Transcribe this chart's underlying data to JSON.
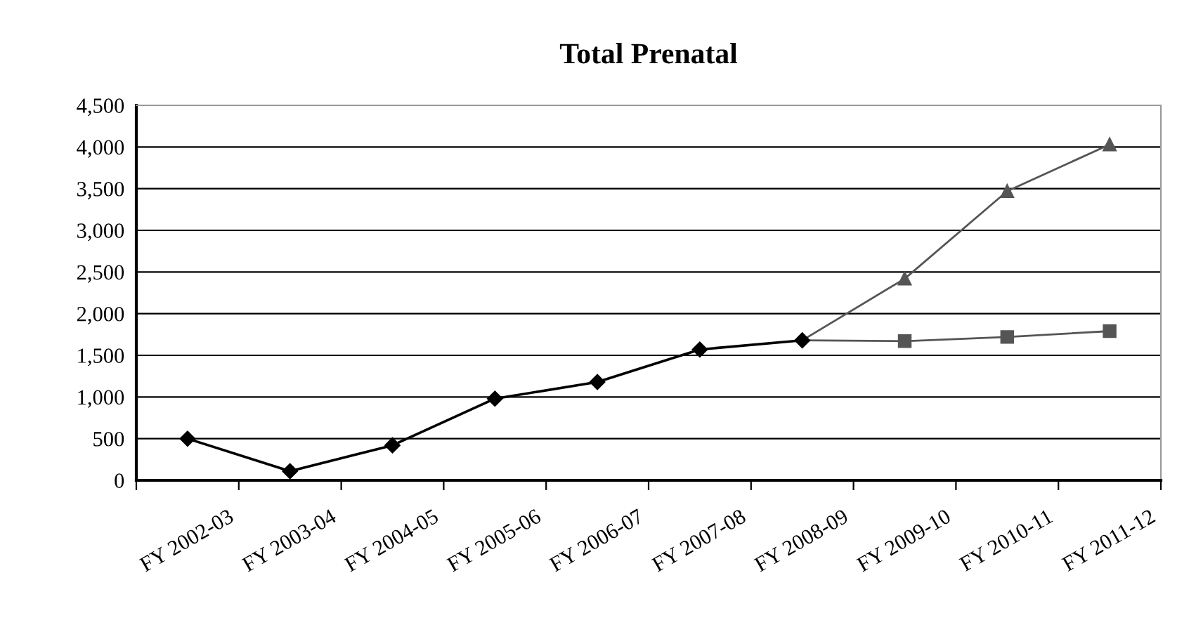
{
  "chart_data": {
    "type": "line",
    "title": "Total Prenatal",
    "categories": [
      "FY 2002-03",
      "FY 2003-04",
      "FY 2004-05",
      "FY 2005-06",
      "FY 2006-07",
      "FY 2007-08",
      "FY 2008-09",
      "FY 2009-10",
      "FY 2010-11",
      "FY 2011-12"
    ],
    "series": [
      {
        "color": "#000000",
        "marker": "diamond",
        "values": [
          500,
          110,
          420,
          980,
          1180,
          1570,
          1680,
          null,
          null,
          null
        ]
      },
      {
        "color": "#555555",
        "marker": "square",
        "values": [
          null,
          null,
          null,
          null,
          null,
          null,
          1680,
          1670,
          1720,
          1790
        ]
      },
      {
        "color": "#555555",
        "marker": "triangle",
        "values": [
          null,
          null,
          null,
          null,
          null,
          null,
          1680,
          2420,
          3470,
          4030
        ]
      }
    ],
    "ylim": [
      0,
      4500
    ],
    "yticks": [
      {
        "value": 0,
        "label": "0"
      },
      {
        "value": 500,
        "label": "500"
      },
      {
        "value": 1000,
        "label": "1,000"
      },
      {
        "value": 1500,
        "label": "1,500"
      },
      {
        "value": 2000,
        "label": "2,000"
      },
      {
        "value": 2500,
        "label": "2,500"
      },
      {
        "value": 3000,
        "label": "3,000"
      },
      {
        "value": 3500,
        "label": "3,500"
      },
      {
        "value": 4000,
        "label": "4,000"
      },
      {
        "value": 4500,
        "label": "4,500"
      }
    ],
    "grid": "y",
    "legend": false,
    "line_style": "solid"
  }
}
